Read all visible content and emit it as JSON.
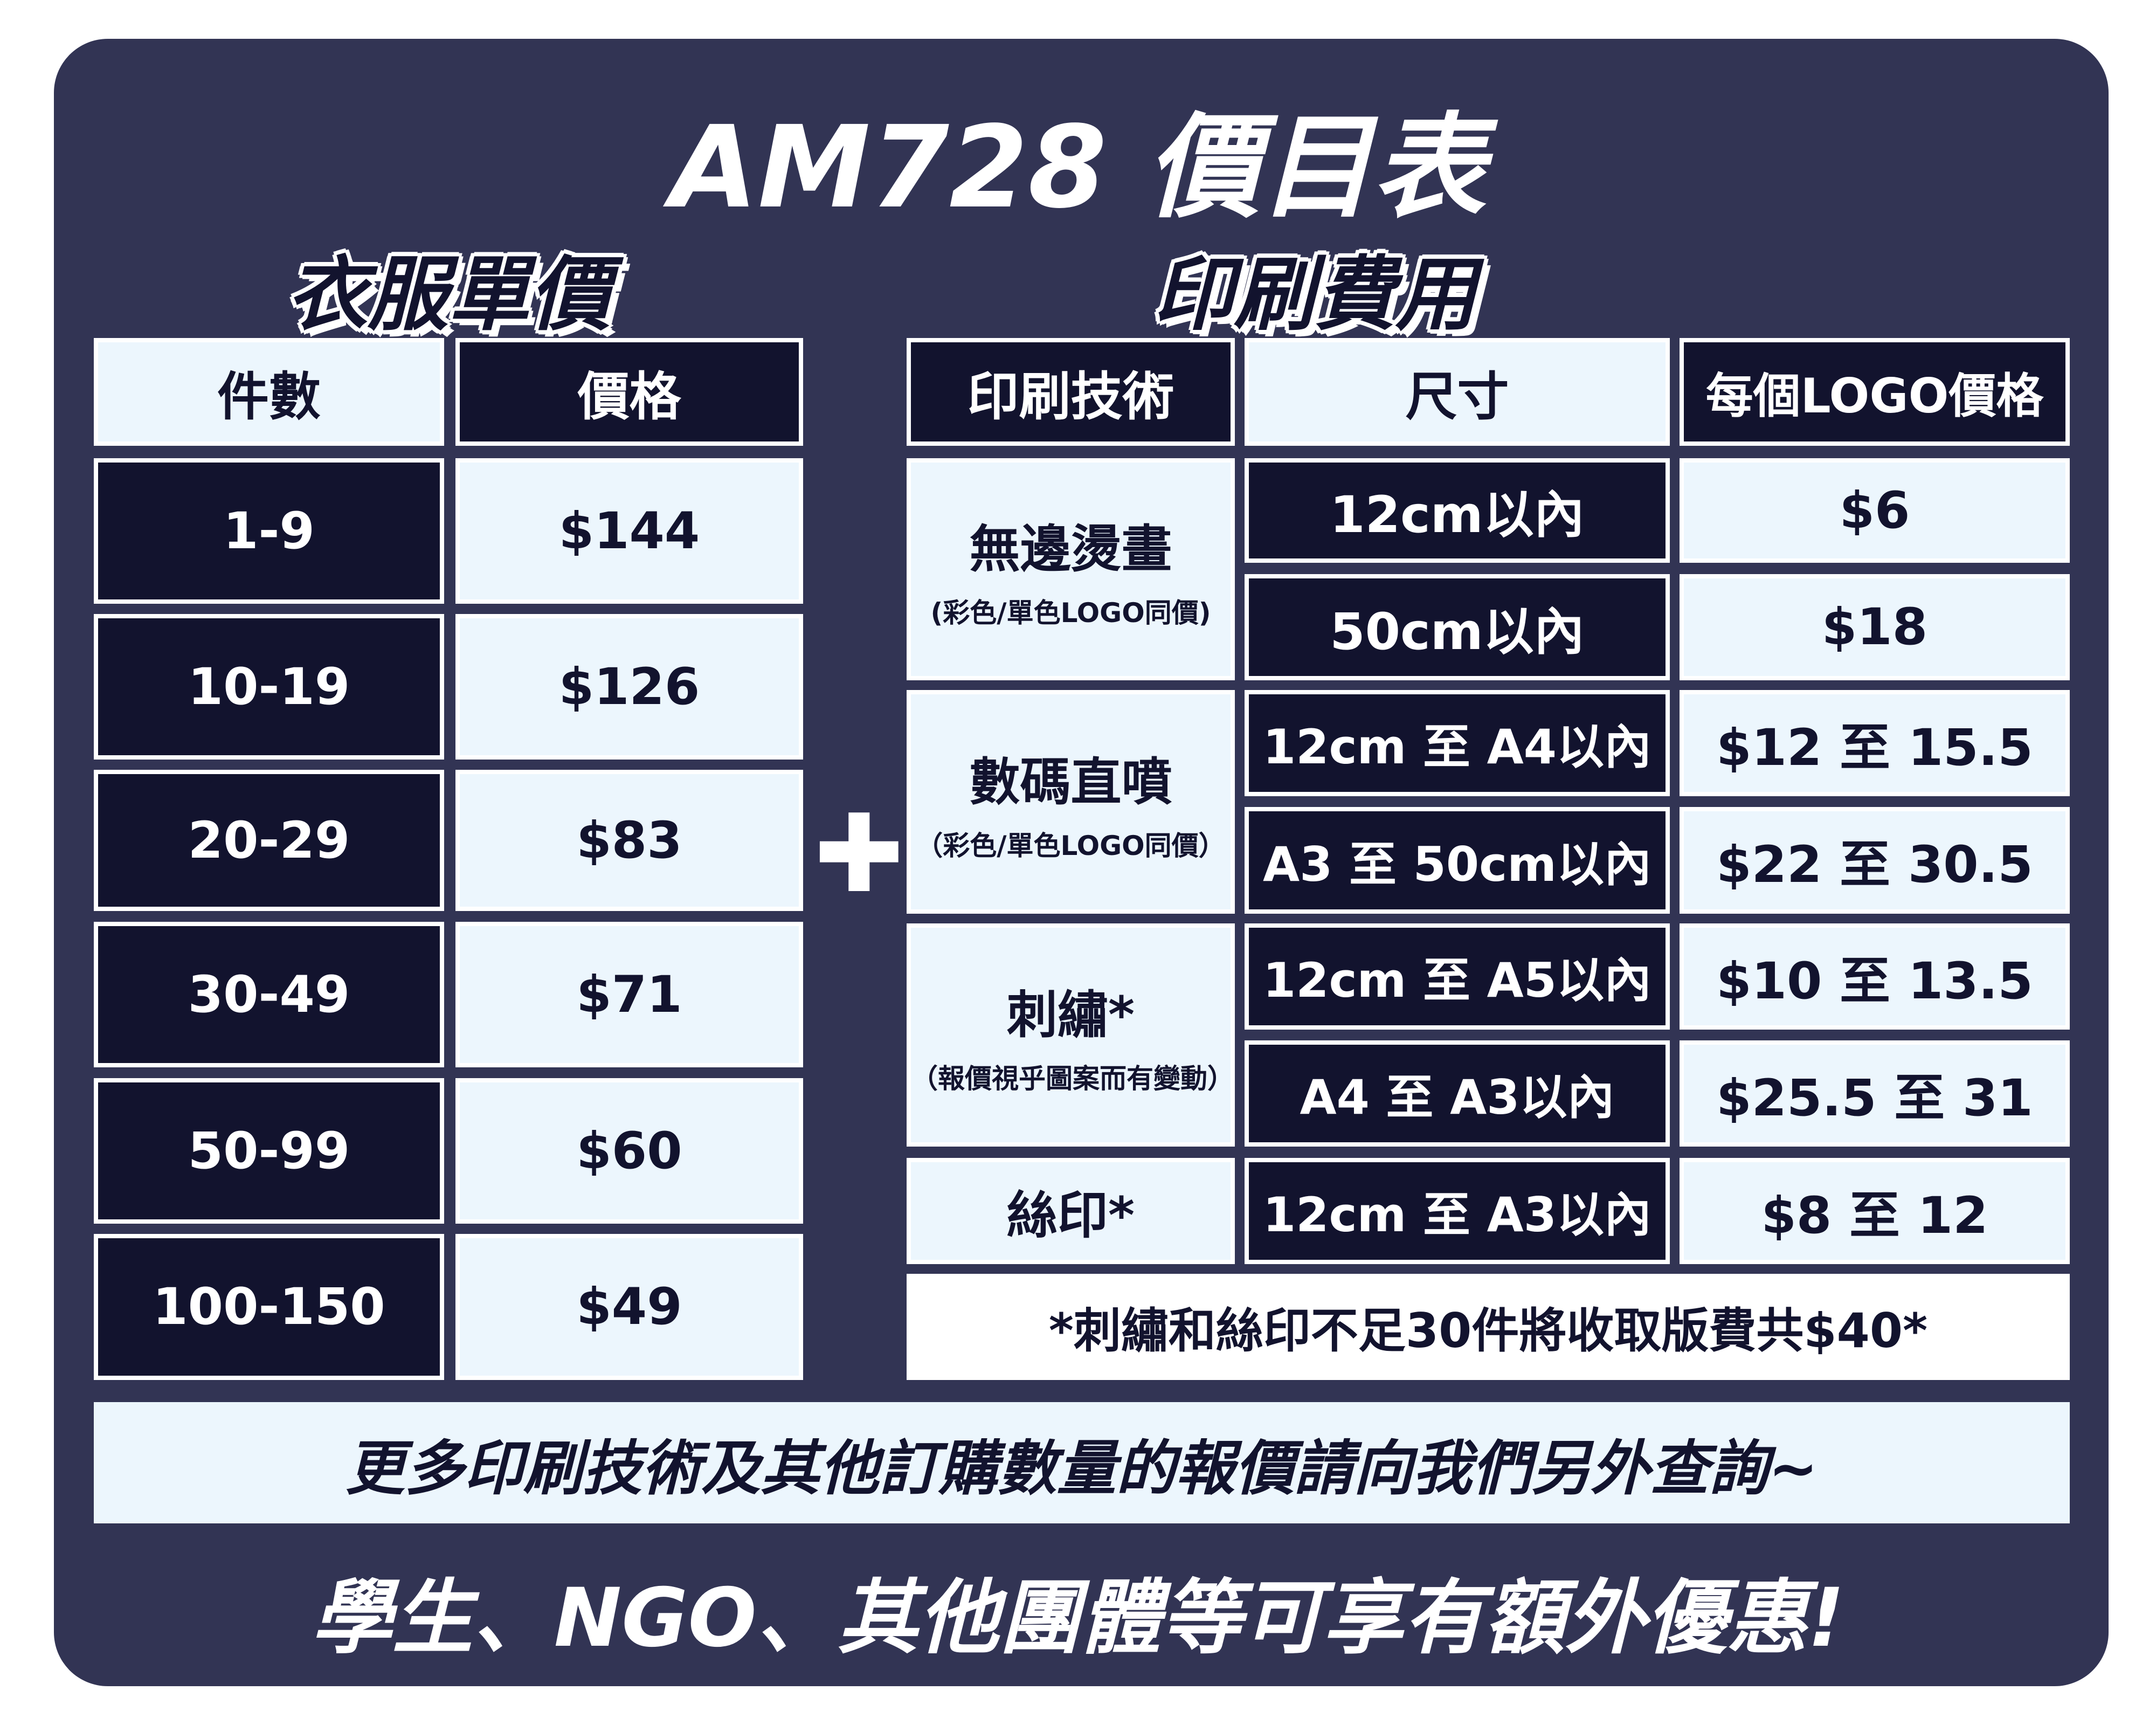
{
  "title": "AM728 價目表",
  "colors": {
    "background": "#323454",
    "dark_cell": "#12132e",
    "light_cell": "#ecf6fd",
    "border": "#ffffff"
  },
  "clothing": {
    "heading": "衣服單價",
    "headers": [
      "件數",
      "價格"
    ],
    "rows": [
      {
        "qty": "1-9",
        "price": "$144"
      },
      {
        "qty": "10-19",
        "price": "$126"
      },
      {
        "qty": "20-29",
        "price": "$83"
      },
      {
        "qty": "30-49",
        "price": "$71"
      },
      {
        "qty": "50-99",
        "price": "$60"
      },
      {
        "qty": "100-150",
        "price": "$49"
      }
    ]
  },
  "plus_icon": "plus-icon",
  "printing": {
    "heading": "印刷費用",
    "headers": [
      "印刷技術",
      "尺寸",
      "每個LOGO價格"
    ],
    "groups": [
      {
        "name": "無邊燙畫",
        "note": "(彩色/單色LOGO同價)",
        "items": [
          {
            "size": "12cm以內",
            "price": "$6"
          },
          {
            "size": "50cm以內",
            "price": "$18"
          }
        ]
      },
      {
        "name": "數碼直噴",
        "note": "（彩色/單色LOGO同價）",
        "items": [
          {
            "size": "12cm 至 A4以內",
            "price": "$12 至 15.5"
          },
          {
            "size": "A3 至 50cm以內",
            "price": "$22 至 30.5"
          }
        ]
      },
      {
        "name": "刺繡*",
        "note": "（報價視乎圖案而有變動）",
        "items": [
          {
            "size": "12cm 至 A5以內",
            "price": "$10 至 13.5"
          },
          {
            "size": "A4 至 A3以內",
            "price": "$25.5 至 31"
          }
        ]
      },
      {
        "name": "絲印*",
        "items": [
          {
            "size": "12cm 至 A3以內",
            "price": "$8 至 12"
          }
        ]
      }
    ],
    "footnote": "*刺繡和絲印不足30件將收取版費共$40*"
  },
  "banner": "更多印刷技術及其他訂購數量的報價請向我們另外查詢~",
  "footer": "學生、NGO、其他團體等可享有額外優惠!"
}
